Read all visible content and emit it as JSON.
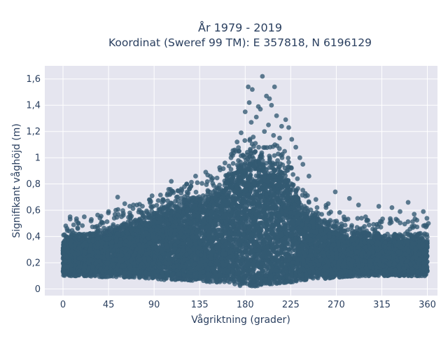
{
  "chart_data": {
    "type": "scatter",
    "title_line1": "År 1979 - 2019",
    "title_line2": "Koordinat (Sweref 99 TM): E 357818, N 6196129",
    "xlabel": "Vågriktning (grader)",
    "ylabel": "Signifikant våghöjd (m)",
    "xlim": [
      -18,
      370
    ],
    "ylim": [
      -0.05,
      1.7
    ],
    "x_ticks": [
      0,
      45,
      90,
      135,
      180,
      225,
      270,
      315,
      360
    ],
    "x_tick_labels": [
      "0",
      "45",
      "90",
      "135",
      "180",
      "225",
      "270",
      "315",
      "360"
    ],
    "y_ticks": [
      0,
      0.2,
      0.4,
      0.6,
      0.8,
      1.0,
      1.2,
      1.4,
      1.6
    ],
    "y_tick_labels": [
      "0",
      "0,2",
      "0,4",
      "0,6",
      "0,8",
      "1",
      "1,2",
      "1,4",
      "1,6"
    ],
    "grid": true,
    "background_color": "#e5e5ef",
    "marker_color": "#335a72",
    "envelope": {
      "x": [
        0,
        10,
        20,
        45,
        60,
        90,
        100,
        120,
        135,
        150,
        160,
        170,
        180,
        190,
        200,
        210,
        220,
        225,
        230,
        240,
        250,
        260,
        270,
        280,
        300,
        315,
        330,
        345,
        360
      ],
      "y_min": [
        0.1,
        0.1,
        0.1,
        0.09,
        0.09,
        0.08,
        0.07,
        0.07,
        0.06,
        0.05,
        0.04,
        0.03,
        0.02,
        0.02,
        0.03,
        0.04,
        0.05,
        0.05,
        0.06,
        0.07,
        0.08,
        0.08,
        0.09,
        0.09,
        0.1,
        0.1,
        0.1,
        0.1,
        0.1
      ],
      "y_max": [
        0.42,
        0.42,
        0.42,
        0.47,
        0.5,
        0.58,
        0.64,
        0.68,
        0.73,
        0.77,
        0.86,
        0.96,
        1.02,
        1.05,
        1.0,
        0.98,
        0.93,
        0.84,
        0.76,
        0.62,
        0.57,
        0.52,
        0.49,
        0.45,
        0.43,
        0.42,
        0.42,
        0.42,
        0.42
      ]
    },
    "outliers": [
      {
        "x": 197,
        "y": 1.62
      },
      {
        "x": 183,
        "y": 1.54
      },
      {
        "x": 187,
        "y": 1.52
      },
      {
        "x": 209,
        "y": 1.54
      },
      {
        "x": 201,
        "y": 1.47
      },
      {
        "x": 204,
        "y": 1.45
      },
      {
        "x": 184,
        "y": 1.42
      },
      {
        "x": 193,
        "y": 1.39
      },
      {
        "x": 206,
        "y": 1.4
      },
      {
        "x": 180,
        "y": 1.35
      },
      {
        "x": 195,
        "y": 1.37
      },
      {
        "x": 191,
        "y": 1.31
      },
      {
        "x": 211,
        "y": 1.32
      },
      {
        "x": 220,
        "y": 1.29
      },
      {
        "x": 186,
        "y": 1.27
      },
      {
        "x": 203,
        "y": 1.25
      },
      {
        "x": 216,
        "y": 1.24
      },
      {
        "x": 199,
        "y": 1.2
      },
      {
        "x": 176,
        "y": 1.19
      },
      {
        "x": 223,
        "y": 1.23
      },
      {
        "x": 208,
        "y": 1.17
      },
      {
        "x": 214,
        "y": 1.15
      },
      {
        "x": 226,
        "y": 1.14
      },
      {
        "x": 172,
        "y": 1.12
      },
      {
        "x": 230,
        "y": 1.08
      },
      {
        "x": 237,
        "y": 0.95
      },
      {
        "x": 243,
        "y": 0.86
      },
      {
        "x": 131,
        "y": 0.86
      },
      {
        "x": 141,
        "y": 0.89
      },
      {
        "x": 107,
        "y": 0.82
      },
      {
        "x": 120,
        "y": 0.78
      },
      {
        "x": 54,
        "y": 0.7
      },
      {
        "x": 88,
        "y": 0.71
      },
      {
        "x": 61,
        "y": 0.65
      },
      {
        "x": 73,
        "y": 0.64
      },
      {
        "x": 269,
        "y": 0.74
      },
      {
        "x": 283,
        "y": 0.69
      },
      {
        "x": 262,
        "y": 0.65
      },
      {
        "x": 292,
        "y": 0.64
      },
      {
        "x": 341,
        "y": 0.66
      },
      {
        "x": 356,
        "y": 0.59
      },
      {
        "x": 312,
        "y": 0.63
      },
      {
        "x": 325,
        "y": 0.62
      },
      {
        "x": 333,
        "y": 0.59
      },
      {
        "x": 347,
        "y": 0.57
      },
      {
        "x": 7,
        "y": 0.55
      },
      {
        "x": 21,
        "y": 0.55
      },
      {
        "x": 28,
        "y": 0.53
      },
      {
        "x": 45,
        "y": 0.59
      },
      {
        "x": 38,
        "y": 0.51
      },
      {
        "x": 15,
        "y": 0.5
      },
      {
        "x": 361,
        "y": 0.5
      },
      {
        "x": 300,
        "y": 0.52
      },
      {
        "x": 251,
        "y": 0.62
      },
      {
        "x": 98,
        "y": 0.66
      },
      {
        "x": 66,
        "y": 0.58
      },
      {
        "x": 160,
        "y": 0.96
      },
      {
        "x": 166,
        "y": 1.0
      },
      {
        "x": 234,
        "y": 1.0
      },
      {
        "x": 171,
        "y": 1.05
      }
    ]
  }
}
